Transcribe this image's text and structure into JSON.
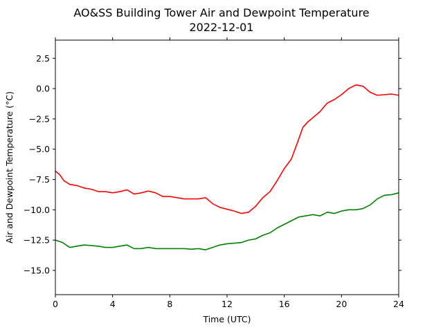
{
  "chart_data": {
    "type": "line",
    "title": "AO&SS Building Tower Air and Dewpoint Temperature",
    "subtitle": "2022-12-01",
    "xlabel": "Time (UTC)",
    "ylabel": "Air and Dewpoint Temperature (°C)",
    "xlim": [
      0,
      24
    ],
    "ylim": [
      -17,
      4
    ],
    "xticks": [
      0,
      4,
      8,
      12,
      16,
      20,
      24
    ],
    "xtick_labels": [
      "0",
      "4",
      "8",
      "12",
      "16",
      "20",
      "24"
    ],
    "yticks": [
      2.5,
      0.0,
      -2.5,
      -5.0,
      -7.5,
      -10.0,
      -12.5,
      -15.0
    ],
    "ytick_labels": [
      "2.5",
      "0.0",
      "−2.5",
      "−5.0",
      "−7.5",
      "−10.0",
      "−12.5",
      "−15.0"
    ],
    "grid": false,
    "series": [
      {
        "color": "#ff0000",
        "x": [
          0,
          0.3,
          0.6,
          1,
          1.5,
          2,
          2.5,
          3,
          3.5,
          4,
          4.5,
          5,
          5.5,
          6,
          6.5,
          7,
          7.5,
          8,
          8.5,
          9,
          9.5,
          10,
          10.5,
          11,
          11.5,
          12,
          12.5,
          13,
          13.5,
          14,
          14.5,
          15,
          15.5,
          16,
          16.5,
          17,
          17.3,
          17.6,
          18,
          18.5,
          19,
          19.5,
          20,
          20.5,
          21,
          21.5,
          22,
          22.5,
          23,
          23.5,
          24
        ],
        "y": [
          -6.8,
          -7.1,
          -7.6,
          -7.9,
          -8.0,
          -8.2,
          -8.3,
          -8.5,
          -8.5,
          -8.6,
          -8.5,
          -8.35,
          -8.7,
          -8.6,
          -8.45,
          -8.6,
          -8.9,
          -8.9,
          -9.0,
          -9.1,
          -9.1,
          -9.1,
          -9.0,
          -9.5,
          -9.8,
          -9.95,
          -10.1,
          -10.3,
          -10.2,
          -9.7,
          -9.0,
          -8.5,
          -7.6,
          -6.6,
          -5.8,
          -4.2,
          -3.2,
          -2.8,
          -2.4,
          -1.9,
          -1.2,
          -0.9,
          -0.5,
          0.0,
          0.3,
          0.2,
          -0.3,
          -0.55,
          -0.5,
          -0.45,
          -0.55
        ]
      },
      {
        "color": "#008000",
        "x": [
          0,
          0.5,
          1,
          1.5,
          2,
          2.5,
          3,
          3.5,
          4,
          4.5,
          5,
          5.5,
          6,
          6.5,
          7,
          7.5,
          8,
          8.5,
          9,
          9.5,
          10,
          10.5,
          11,
          11.5,
          12,
          12.5,
          13,
          13.5,
          14,
          14.5,
          15,
          15.5,
          16,
          16.5,
          17,
          17.5,
          18,
          18.5,
          19,
          19.5,
          20,
          20.5,
          21,
          21.5,
          22,
          22.5,
          23,
          23.5,
          24
        ],
        "y": [
          -12.5,
          -12.7,
          -13.1,
          -13.0,
          -12.9,
          -12.95,
          -13.0,
          -13.1,
          -13.1,
          -13.0,
          -12.9,
          -13.2,
          -13.2,
          -13.1,
          -13.2,
          -13.2,
          -13.2,
          -13.2,
          -13.2,
          -13.25,
          -13.2,
          -13.3,
          -13.1,
          -12.9,
          -12.8,
          -12.75,
          -12.7,
          -12.5,
          -12.4,
          -12.1,
          -11.9,
          -11.5,
          -11.2,
          -10.9,
          -10.6,
          -10.5,
          -10.4,
          -10.5,
          -10.2,
          -10.3,
          -10.1,
          -10.0,
          -10.0,
          -9.9,
          -9.6,
          -9.1,
          -8.8,
          -8.75,
          -8.6
        ]
      }
    ]
  }
}
